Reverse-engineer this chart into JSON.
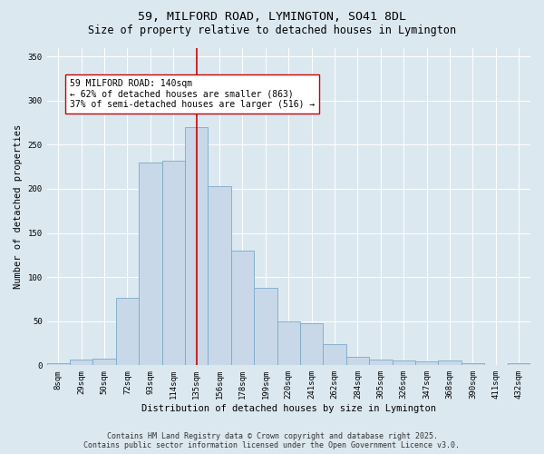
{
  "title_line1": "59, MILFORD ROAD, LYMINGTON, SO41 8DL",
  "title_line2": "Size of property relative to detached houses in Lymington",
  "xlabel": "Distribution of detached houses by size in Lymington",
  "ylabel": "Number of detached properties",
  "categories": [
    "8sqm",
    "29sqm",
    "50sqm",
    "72sqm",
    "93sqm",
    "114sqm",
    "135sqm",
    "156sqm",
    "178sqm",
    "199sqm",
    "220sqm",
    "241sqm",
    "262sqm",
    "284sqm",
    "305sqm",
    "326sqm",
    "347sqm",
    "368sqm",
    "390sqm",
    "411sqm",
    "432sqm"
  ],
  "values": [
    2,
    7,
    8,
    77,
    230,
    232,
    270,
    203,
    130,
    88,
    50,
    48,
    24,
    10,
    7,
    6,
    4,
    5,
    2,
    0,
    2
  ],
  "bar_color": "#c8d8e8",
  "bar_edge_color": "#7baac8",
  "vline_x_index": 6,
  "vline_color": "#cc0000",
  "annotation_text": "59 MILFORD ROAD: 140sqm\n← 62% of detached houses are smaller (863)\n37% of semi-detached houses are larger (516) →",
  "annotation_box_color": "#ffffff",
  "annotation_box_edge_color": "#cc0000",
  "ylim": [
    0,
    360
  ],
  "yticks": [
    0,
    50,
    100,
    150,
    200,
    250,
    300,
    350
  ],
  "bg_color": "#dce8f0",
  "plot_bg_color": "#dce8f0",
  "footer_line1": "Contains HM Land Registry data © Crown copyright and database right 2025.",
  "footer_line2": "Contains public sector information licensed under the Open Government Licence v3.0.",
  "title_fontsize": 9.5,
  "subtitle_fontsize": 8.5,
  "axis_label_fontsize": 7.5,
  "tick_fontsize": 6.5,
  "annotation_fontsize": 7,
  "footer_fontsize": 6
}
